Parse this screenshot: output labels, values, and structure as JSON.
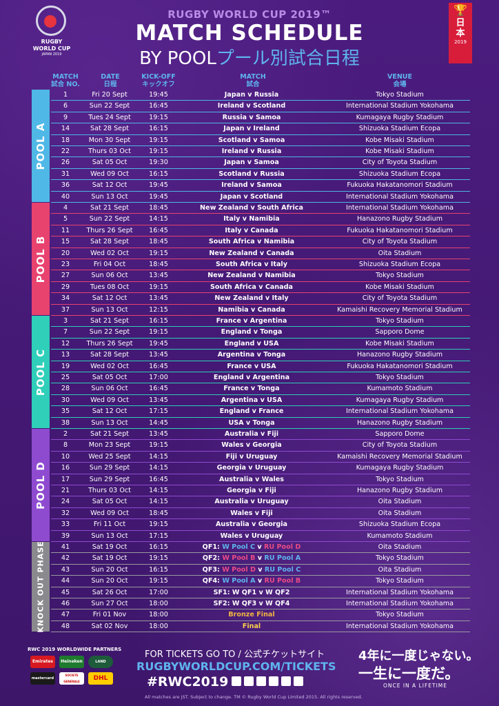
{
  "header": {
    "logo_line1": "RUGBY",
    "logo_line2": "WORLD CUP",
    "logo_line3": "JAPAN 2019",
    "supertitle": "RUGBY WORLD CUP 2019™",
    "title": "MATCH SCHEDULE",
    "subtitle_en": "BY POOL",
    "subtitle_jp": "プール別試合日程",
    "badge_kanji1": "日",
    "badge_kanji2": "本",
    "badge_year": "2019"
  },
  "columns": {
    "match": "MATCH",
    "match_jp": "試合 NO.",
    "date": "DATE",
    "date_jp": "日程",
    "kickoff": "KICK-OFF",
    "kickoff_jp": "キックオフ",
    "fixture": "MATCH",
    "fixture_jp": "試合",
    "venue": "VENUE",
    "venue_jp": "会場"
  },
  "colors": {
    "poolA": "#4fb8e6",
    "poolB": "#e8426f",
    "poolC": "#2fcfb9",
    "poolD": "#8f4bd0",
    "knockout": "#8a8a8e",
    "rowline": "#4aa3e0",
    "winner": "#5fb4ee",
    "runnerup": "#e94b86",
    "gold": "#f2b640"
  },
  "pools": [
    {
      "label": "POOL A",
      "color": "#4fb8e6",
      "matches": [
        {
          "no": "1",
          "date": "Fri 20 Sept",
          "ko": "19:45",
          "fixture": "Japan v Russia",
          "venue": "Tokyo Stadium"
        },
        {
          "no": "6",
          "date": "Sun 22 Sept",
          "ko": "16:45",
          "fixture": "Ireland v Scotland",
          "venue": "International Stadium Yokohama"
        },
        {
          "no": "9",
          "date": "Tues 24 Sept",
          "ko": "19:15",
          "fixture": "Russia v Samoa",
          "venue": "Kumagaya Rugby Stadium"
        },
        {
          "no": "14",
          "date": "Sat 28 Sept",
          "ko": "16:15",
          "fixture": "Japan v Ireland",
          "venue": "Shizuoka Stadium Ecopa"
        },
        {
          "no": "18",
          "date": "Mon 30 Sept",
          "ko": "19:15",
          "fixture": "Scotland v Samoa",
          "venue": "Kobe Misaki Stadium"
        },
        {
          "no": "22",
          "date": "Thurs 03 Oct",
          "ko": "19:15",
          "fixture": "Ireland v Russia",
          "venue": "Kobe Misaki Stadium"
        },
        {
          "no": "26",
          "date": "Sat 05 Oct",
          "ko": "19:30",
          "fixture": "Japan v Samoa",
          "venue": "City of Toyota Stadium"
        },
        {
          "no": "31",
          "date": "Wed 09 Oct",
          "ko": "16:15",
          "fixture": "Scotland v Russia",
          "venue": "Shizuoka Stadium Ecopa"
        },
        {
          "no": "36",
          "date": "Sat 12 Oct",
          "ko": "19:45",
          "fixture": "Ireland v Samoa",
          "venue": "Fukuoka Hakatanomori Stadium"
        },
        {
          "no": "40",
          "date": "Sun 13 Oct",
          "ko": "19:45",
          "fixture": "Japan v Scotland",
          "venue": "International Stadium Yokohama"
        }
      ]
    },
    {
      "label": "POOL B",
      "color": "#e8426f",
      "matches": [
        {
          "no": "4",
          "date": "Sat 21 Sept",
          "ko": "18:45",
          "fixture": "New Zealand v South Africa",
          "venue": "International Stadium Yokohama"
        },
        {
          "no": "5",
          "date": "Sun 22 Sept",
          "ko": "14:15",
          "fixture": "Italy v Namibia",
          "venue": "Hanazono Rugby Stadium"
        },
        {
          "no": "11",
          "date": "Thurs 26 Sept",
          "ko": "16:45",
          "fixture": "Italy v Canada",
          "venue": "Fukuoka Hakatanomori Stadium"
        },
        {
          "no": "15",
          "date": "Sat 28 Sept",
          "ko": "18:45",
          "fixture": "South Africa v Namibia",
          "venue": "City of Toyota Stadium"
        },
        {
          "no": "20",
          "date": "Wed 02 Oct",
          "ko": "19:15",
          "fixture": "New Zealand v Canada",
          "venue": "Oita Stadium"
        },
        {
          "no": "23",
          "date": "Fri 04 Oct",
          "ko": "18:45",
          "fixture": "South Africa v Italy",
          "venue": "Shizuoka Stadium Ecopa"
        },
        {
          "no": "27",
          "date": "Sun 06 Oct",
          "ko": "13:45",
          "fixture": "New Zealand v Namibia",
          "venue": "Tokyo Stadium"
        },
        {
          "no": "29",
          "date": "Tues 08 Oct",
          "ko": "19:15",
          "fixture": "South Africa v Canada",
          "venue": "Kobe Misaki Stadium"
        },
        {
          "no": "34",
          "date": "Sat 12 Oct",
          "ko": "13:45",
          "fixture": "New Zealand v Italy",
          "venue": "City of Toyota Stadium"
        },
        {
          "no": "37",
          "date": "Sun 13 Oct",
          "ko": "12:15",
          "fixture": "Namibia v Canada",
          "venue": "Kamaishi Recovery Memorial Stadium"
        }
      ]
    },
    {
      "label": "POOL C",
      "color": "#2fcfb9",
      "matches": [
        {
          "no": "3",
          "date": "Sat 21 Sept",
          "ko": "16:15",
          "fixture": "France v Argentina",
          "venue": "Tokyo Stadium"
        },
        {
          "no": "7",
          "date": "Sun 22 Sept",
          "ko": "19:15",
          "fixture": "England v Tonga",
          "venue": "Sapporo Dome"
        },
        {
          "no": "12",
          "date": "Thurs 26 Sept",
          "ko": "19:45",
          "fixture": "England v USA",
          "venue": "Kobe Misaki Stadium"
        },
        {
          "no": "13",
          "date": "Sat 28 Sept",
          "ko": "13:45",
          "fixture": "Argentina v Tonga",
          "venue": "Hanazono Rugby Stadium"
        },
        {
          "no": "19",
          "date": "Wed 02 Oct",
          "ko": "16:45",
          "fixture": "France v USA",
          "venue": "Fukuoka Hakatanomori Stadium"
        },
        {
          "no": "25",
          "date": "Sat 05 Oct",
          "ko": "17:00",
          "fixture": "England v Argentina",
          "venue": "Tokyo Stadium"
        },
        {
          "no": "28",
          "date": "Sun 06 Oct",
          "ko": "16:45",
          "fixture": "France v Tonga",
          "venue": "Kumamoto Stadium"
        },
        {
          "no": "30",
          "date": "Wed 09 Oct",
          "ko": "13:45",
          "fixture": "Argentina v USA",
          "venue": "Kumagaya Rugby Stadium"
        },
        {
          "no": "35",
          "date": "Sat 12 Oct",
          "ko": "17:15",
          "fixture": "England v France",
          "venue": "International Stadium Yokohama"
        },
        {
          "no": "38",
          "date": "Sun 13 Oct",
          "ko": "14:45",
          "fixture": "USA v Tonga",
          "venue": "Hanazono Rugby Stadium"
        }
      ]
    },
    {
      "label": "POOL D",
      "color": "#8f4bd0",
      "matches": [
        {
          "no": "2",
          "date": "Sat 21 Sept",
          "ko": "13:45",
          "fixture": "Australia v Fiji",
          "venue": "Sapporo Dome"
        },
        {
          "no": "8",
          "date": "Mon 23 Sept",
          "ko": "19:15",
          "fixture": "Wales v Georgia",
          "venue": "City of Toyota Stadium"
        },
        {
          "no": "10",
          "date": "Wed 25 Sept",
          "ko": "14:15",
          "fixture": "Fiji v Uruguay",
          "venue": "Kamaishi Recovery Memorial Stadium"
        },
        {
          "no": "16",
          "date": "Sun 29 Sept",
          "ko": "14:15",
          "fixture": "Georgia v Uruguay",
          "venue": "Kumagaya Rugby Stadium"
        },
        {
          "no": "17",
          "date": "Sun 29 Sept",
          "ko": "16:45",
          "fixture": "Australia v Wales",
          "venue": "Tokyo Stadium"
        },
        {
          "no": "21",
          "date": "Thurs 03 Oct",
          "ko": "14:15",
          "fixture": "Georgia v Fiji",
          "venue": "Hanazono Rugby Stadium"
        },
        {
          "no": "24",
          "date": "Sat 05 Oct",
          "ko": "14:15",
          "fixture": "Australia v Uruguay",
          "venue": "Oita Stadium"
        },
        {
          "no": "32",
          "date": "Wed 09 Oct",
          "ko": "18:45",
          "fixture": "Wales v Fiji",
          "venue": "Oita Stadium"
        },
        {
          "no": "33",
          "date": "Fri 11 Oct",
          "ko": "19:15",
          "fixture": "Australia v Georgia",
          "venue": "Shizuoka Stadium Ecopa"
        },
        {
          "no": "39",
          "date": "Sun 13 Oct",
          "ko": "17:15",
          "fixture": "Wales v Uruguay",
          "venue": "Kumamoto Stadium"
        }
      ]
    },
    {
      "label": "KNOCK OUT PHASE",
      "color": "#8a8a8e",
      "matches": [
        {
          "no": "41",
          "date": "Sat 19 Oct",
          "ko": "16:15",
          "parts": [
            {
              "t": "QF1: ",
              "s": "w"
            },
            {
              "t": "W Pool C",
              "s": "b"
            },
            {
              "t": " v ",
              "s": "w"
            },
            {
              "t": "RU Pool D",
              "s": "p"
            }
          ],
          "venue": "Oita Stadium"
        },
        {
          "no": "42",
          "date": "Sat 19 Oct",
          "ko": "19:15",
          "parts": [
            {
              "t": "QF2: ",
              "s": "w"
            },
            {
              "t": "W Pool B",
              "s": "p"
            },
            {
              "t": " v ",
              "s": "w"
            },
            {
              "t": "RU Pool A",
              "s": "b"
            }
          ],
          "venue": "Tokyo Stadium"
        },
        {
          "no": "43",
          "date": "Sun 20 Oct",
          "ko": "16:15",
          "parts": [
            {
              "t": "QF3: ",
              "s": "w"
            },
            {
              "t": "W Pool D",
              "s": "p"
            },
            {
              "t": " v ",
              "s": "w"
            },
            {
              "t": "RU Pool C",
              "s": "b"
            }
          ],
          "venue": "Oita Stadium"
        },
        {
          "no": "44",
          "date": "Sun 20 Oct",
          "ko": "19:15",
          "parts": [
            {
              "t": "QF4: ",
              "s": "w"
            },
            {
              "t": "W Pool A",
              "s": "b"
            },
            {
              "t": " v ",
              "s": "w"
            },
            {
              "t": "RU Pool B",
              "s": "p"
            }
          ],
          "venue": "Tokyo Stadium"
        },
        {
          "no": "45",
          "date": "Sat 26 Oct",
          "ko": "17:00",
          "parts": [
            {
              "t": "SF1: W QF1 v W QF2",
              "s": "w"
            }
          ],
          "venue": "International Stadium Yokohama"
        },
        {
          "no": "46",
          "date": "Sun 27 Oct",
          "ko": "18:00",
          "parts": [
            {
              "t": "SF2: W QF3 v W QF4",
              "s": "w"
            }
          ],
          "venue": "International Stadium Yokohama"
        },
        {
          "no": "47",
          "date": "Fri 01 Nov",
          "ko": "18:00",
          "parts": [
            {
              "t": "Bronze Final",
              "s": "g"
            }
          ],
          "venue": "Tokyo Stadium"
        },
        {
          "no": "48",
          "date": "Sat 02 Nov",
          "ko": "18:00",
          "parts": [
            {
              "t": "Final",
              "s": "y"
            }
          ],
          "venue": "International Stadium Yokohama"
        }
      ]
    }
  ],
  "footer": {
    "partners_title": "RWC 2019 WORLDWIDE PARTNERS",
    "partner1": "Emirates",
    "partner2": "Heineken",
    "partner3": "LAND ROVER",
    "partner4": "mastercard",
    "partner5": "SOCIETE GENERALE",
    "partner6": "DHL",
    "tickets_en": "FOR TICKETS GO TO / ",
    "tickets_jp": "公式チケットサイト",
    "tickets_url": "RUGBYWORLDCUP.COM/TICKETS",
    "hashtag": "#RWC2019",
    "copyright": "All matches are JST. Subject to change. TM © Rugby World Cup Limited 2015. All rights reserved.",
    "slogan1": "4年に一度じゃない。",
    "slogan2": "一生に一度だ。",
    "slogan3": "ONCE IN A LIFETIME"
  }
}
